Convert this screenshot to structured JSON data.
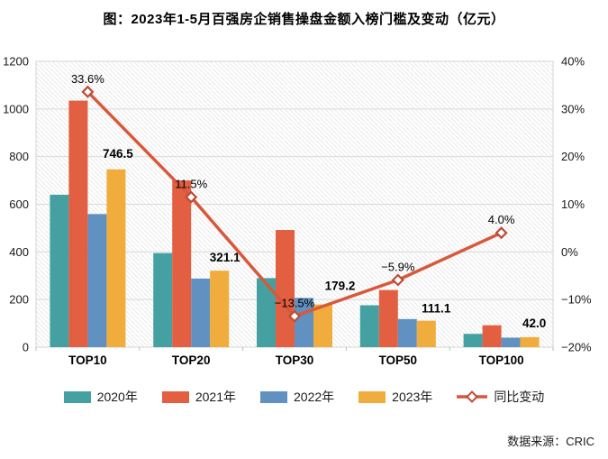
{
  "title": "图：2023年1-5月百强房企销售操盘金额入榜门槛及变动（亿元）",
  "source": "数据来源：CRIC",
  "chart_data": {
    "type": "bar",
    "subtype": "grouped-bars-with-line",
    "title": "图：2023年1-5月百强房企销售操盘金额入榜门槛及变动（亿元）",
    "categories": [
      "TOP10",
      "TOP20",
      "TOP30",
      "TOP50",
      "TOP100"
    ],
    "series": [
      {
        "name": "2020年",
        "type": "bar",
        "color": "#45A1A1",
        "values": [
          640,
          395,
          290,
          176,
          56
        ]
      },
      {
        "name": "2021年",
        "type": "bar",
        "color": "#E25F42",
        "values": [
          1035,
          700,
          492,
          240,
          92
        ]
      },
      {
        "name": "2022年",
        "type": "bar",
        "color": "#6091C0",
        "values": [
          559,
          288,
          207,
          118,
          40
        ]
      },
      {
        "name": "2023年",
        "type": "bar",
        "color": "#F0AC3C",
        "values": [
          746.5,
          321.1,
          179.2,
          111.1,
          42.0
        ],
        "value_labels": [
          "746.5",
          "321.1",
          "179.2",
          "111.1",
          "42.0"
        ]
      },
      {
        "name": "同比变动",
        "type": "line",
        "axis": "right",
        "color": "#D8583C",
        "marker": "diamond-white-fill",
        "marker_stroke": "#BE4B36",
        "values": [
          33.6,
          11.5,
          -13.5,
          -5.9,
          4.0
        ],
        "value_labels": [
          "33.6%",
          "11.5%",
          "−13.5%",
          "−5.9%",
          "4.0%"
        ]
      }
    ],
    "left_axis": {
      "min": 0,
      "max": 1200,
      "step": 200,
      "ticks": [
        "0",
        "200",
        "400",
        "600",
        "800",
        "1000",
        "1200"
      ]
    },
    "right_axis": {
      "min": -20,
      "max": 40,
      "step": 10,
      "unit": "%",
      "ticks": [
        "−20%",
        "−10%",
        "0%",
        "10%",
        "20%",
        "30%",
        "40%"
      ]
    },
    "grid": "horizontal, light gray, hatched plot background",
    "legend_position": "bottom",
    "ylabel": "",
    "xlabel": ""
  },
  "legend": {
    "items": [
      "2020年",
      "2021年",
      "2022年",
      "2023年",
      "同比变动"
    ]
  },
  "colors": {
    "gridline": "#d9d9d9",
    "plot_border": "#d4d4d4",
    "hatch": "#e9e9e9",
    "axis_text": "#1a1a1a",
    "label_text": "#000000"
  }
}
